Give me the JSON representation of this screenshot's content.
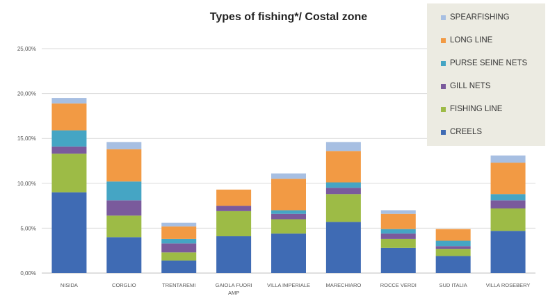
{
  "chart_data": {
    "type": "bar",
    "stacked": true,
    "title": "Types of fishing*/ Costal zone",
    "categories": [
      "NISIDA",
      "CORGLIO",
      "TRENTAREMI",
      "GAIOLA FUORI AMP",
      "VILLA IMPERIALE",
      "MARECHIARO",
      "ROCCE VERDI",
      "SUD ITALIA",
      "VILLA ROSEBERY"
    ],
    "ylim": [
      0,
      25
    ],
    "yticks": [
      0,
      5,
      10,
      15,
      20,
      25
    ],
    "ytick_labels": [
      "0,00%",
      "5,00%",
      "10,00%",
      "15,00%",
      "20,00%",
      "25,00%"
    ],
    "grid": true,
    "legend_position": "top-right",
    "series": [
      {
        "name": "CREELS",
        "color": "#3f6bb4",
        "values": [
          9.0,
          4.0,
          1.4,
          4.1,
          4.4,
          5.7,
          2.8,
          1.9,
          4.7
        ]
      },
      {
        "name": "FISHING LINE",
        "color": "#9dbb46",
        "values": [
          4.3,
          2.4,
          0.9,
          2.8,
          1.6,
          3.1,
          1.0,
          0.8,
          2.5
        ]
      },
      {
        "name": "GILL NETS",
        "color": "#7a5a9c",
        "values": [
          0.8,
          1.7,
          1.0,
          0.6,
          0.6,
          0.7,
          0.6,
          0.3,
          0.9
        ]
      },
      {
        "name": "PURSE SEINE NETS",
        "color": "#45a5c4",
        "values": [
          1.8,
          2.1,
          0.5,
          0.0,
          0.4,
          0.6,
          0.5,
          0.6,
          0.7
        ]
      },
      {
        "name": "LONG LINE",
        "color": "#f29a44",
        "values": [
          3.0,
          3.6,
          1.4,
          1.8,
          3.5,
          3.5,
          1.7,
          1.3,
          3.5
        ]
      },
      {
        "name": "SPEARFISHING",
        "color": "#a7bfe2",
        "values": [
          0.6,
          0.8,
          0.4,
          0.0,
          0.6,
          1.0,
          0.4,
          0.0,
          0.8
        ]
      }
    ]
  }
}
